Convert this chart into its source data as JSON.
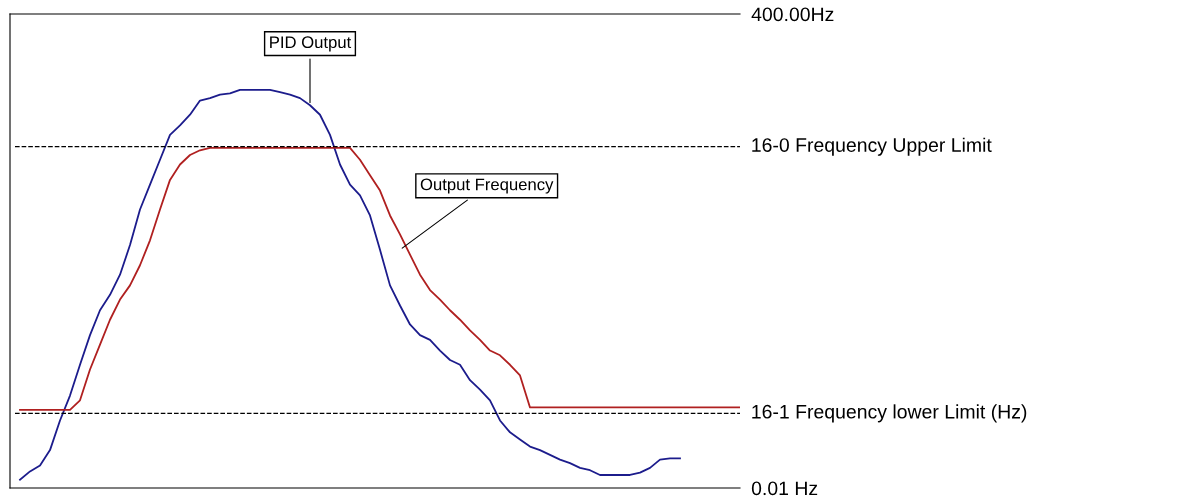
{
  "chart_data": {
    "type": "line",
    "categories": [
      null,
      null,
      null,
      null,
      null,
      null,
      null,
      null,
      null,
      null,
      null,
      null,
      null,
      null,
      null,
      null,
      null,
      null,
      null,
      null,
      null,
      null,
      null,
      null,
      null,
      null,
      null,
      null,
      null,
      null,
      null,
      null,
      null,
      null,
      null,
      null,
      null,
      null,
      null,
      null,
      null,
      null,
      null,
      null,
      null,
      null,
      null,
      null,
      null,
      null,
      null,
      null,
      null,
      null,
      null,
      null,
      null,
      null,
      null,
      null,
      null,
      null,
      null,
      null,
      null,
      null,
      null,
      null,
      null,
      null,
      null,
      null,
      null
    ],
    "series": [
      {
        "color": "#1c1c8c",
        "values": [
          7,
          14,
          19,
          32,
          57,
          78,
          104,
          129,
          150,
          163,
          180,
          205,
          235,
          256,
          277,
          298,
          306,
          315,
          327,
          329,
          332,
          333,
          336,
          336,
          336,
          336,
          334,
          332,
          329,
          323,
          315,
          298,
          273,
          256,
          247,
          230,
          201,
          171,
          154,
          138,
          129,
          125,
          116,
          108,
          104,
          91,
          83,
          74,
          57,
          47,
          41,
          35,
          32,
          28,
          24,
          21,
          17,
          15,
          11,
          11,
          11,
          11,
          13,
          17,
          24,
          25,
          25,
          null,
          null,
          null,
          null,
          null,
          null
        ]
      },
      {
        "color": "#b02020",
        "values": [
          66,
          66,
          66,
          66,
          66,
          66,
          74,
          100,
          121,
          142,
          159,
          171,
          188,
          209,
          235,
          260,
          273,
          281,
          285,
          287,
          287,
          287,
          287,
          287,
          287,
          287,
          287,
          287,
          287,
          287,
          287,
          287,
          287,
          287,
          277,
          264,
          251,
          230,
          214,
          197,
          180,
          167,
          159,
          150,
          142,
          133,
          125,
          116,
          112,
          104,
          95,
          68,
          68,
          68,
          68,
          68,
          68,
          68,
          68,
          68,
          68,
          68,
          68,
          68,
          68,
          68,
          68,
          68,
          68,
          68,
          68,
          68,
          68
        ]
      }
    ],
    "ylim": [
      0.01,
      400
    ],
    "yticks": [
      {
        "value": 0.01,
        "label": "0.01 Hz"
      },
      {
        "value": 400,
        "label": "400.00Hz"
      }
    ],
    "ref_lines": [
      {
        "axis": "y",
        "value": 288,
        "label": "16-0 Frequency Upper Limit",
        "color": "#000000",
        "line_style": "dashed"
      },
      {
        "axis": "y",
        "value": 63,
        "label": "16-1 Frequency lower Limit (Hz)",
        "color": "#000000",
        "line_style": "dashed"
      }
    ],
    "annotations": [
      "PID Output",
      "Output Frequency"
    ],
    "tick_labels": "y",
    "grid": false,
    "legend": false,
    "marker": "none",
    "line_style": "solid"
  }
}
